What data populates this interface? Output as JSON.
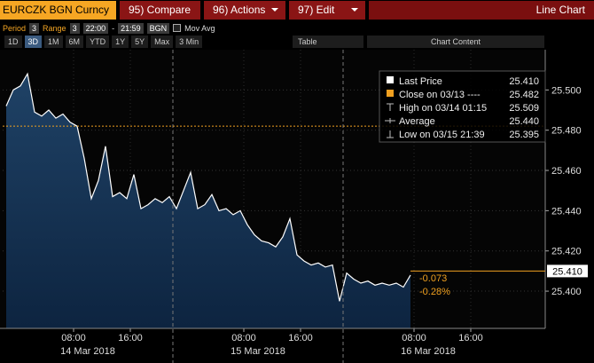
{
  "toolbar": {
    "security": "EURCZK BGN Curncy",
    "buttons": [
      "95) Compare",
      "96) Actions",
      "97) Edit"
    ],
    "view": "Line Chart"
  },
  "controls": {
    "period_label": "Period",
    "period": "3",
    "range_label": "Range",
    "range": "3",
    "start": "22:00",
    "dash": "-",
    "end": "21:59",
    "currency": "BGN",
    "mov_avg": "Mov Avg"
  },
  "periods": [
    "1D",
    "3D",
    "1M",
    "6M",
    "YTD",
    "1Y",
    "5Y",
    "Max"
  ],
  "interval": "3 Min",
  "table": "Table",
  "chart_content": "Chart Content",
  "chart_data": {
    "type": "line",
    "x": [
      -1.5,
      -0.5,
      0.5,
      1.5,
      2.5,
      3.5,
      4.5,
      5.5,
      6.5,
      7.5,
      8.5,
      9.5,
      10.5,
      11.5,
      12.5,
      13.5,
      14.5,
      15.5,
      16.5,
      17.5,
      18.5,
      19.5,
      20.5,
      21.5,
      22.5,
      23.5,
      24.5,
      25.5,
      26.5,
      27.5,
      28.5,
      29.5,
      30.5,
      31.5,
      32.5,
      33.5,
      34.5,
      35.5,
      36.5,
      37.5,
      38.5,
      39.5,
      40.5,
      41.5,
      42.5,
      43.5,
      44.5,
      45.5,
      46.5,
      47.5,
      48.5,
      49.5,
      50.5,
      51.5,
      52.5,
      53.5,
      54.5,
      55.5
    ],
    "series": [
      {
        "name": "Last Price",
        "color": "#ffffff",
        "area_color": "#1c3d60",
        "values": [
          25.492,
          25.5,
          25.502,
          25.508,
          25.489,
          25.487,
          25.49,
          25.486,
          25.488,
          25.484,
          25.482,
          25.466,
          25.446,
          25.455,
          25.472,
          25.447,
          25.449,
          25.446,
          25.458,
          25.441,
          25.443,
          25.446,
          25.444,
          25.447,
          25.441,
          25.45,
          25.459,
          25.441,
          25.443,
          25.448,
          25.44,
          25.441,
          25.438,
          25.44,
          25.433,
          25.428,
          25.425,
          25.424,
          25.422,
          25.427,
          25.436,
          25.418,
          25.415,
          25.413,
          25.414,
          25.412,
          25.413,
          25.395,
          25.409,
          25.406,
          25.404,
          25.405,
          25.403,
          25.404,
          25.403,
          25.404,
          25.402,
          25.408
        ]
      }
    ],
    "xlim": [
      -2,
      74.5
    ],
    "xticks": [
      {
        "value": 8,
        "label": "08:00"
      },
      {
        "value": 16,
        "label": "16:00"
      },
      {
        "value": 32,
        "label": "08:00"
      },
      {
        "value": 40,
        "label": "16:00"
      },
      {
        "value": 56,
        "label": "08:00"
      },
      {
        "value": 64,
        "label": "16:00"
      }
    ],
    "day_labels": [
      {
        "value": 10,
        "label": "14 Mar 2018"
      },
      {
        "value": 34,
        "label": "15 Mar 2018"
      },
      {
        "value": 58,
        "label": "16 Mar 2018"
      }
    ],
    "day_separators": [
      22,
      46
    ],
    "ylim": [
      25.3815,
      25.52
    ],
    "yticks": [
      {
        "value": 25.5,
        "label": "25.500"
      },
      {
        "value": 25.48,
        "label": "25.480"
      },
      {
        "value": 25.46,
        "label": "25.460"
      },
      {
        "value": 25.44,
        "label": "25.440"
      },
      {
        "value": 25.42,
        "label": "25.420"
      },
      {
        "value": 25.4,
        "label": "25.400"
      }
    ],
    "grid": true,
    "legend": {
      "items": [
        {
          "name": "Last Price",
          "value": 25.41,
          "value_label": "25.410",
          "marker": "square",
          "color": "#ffffff"
        },
        {
          "name": "Close on 03/13 ----",
          "value": 25.482,
          "marker": "square",
          "color": "#f0a020"
        },
        {
          "name": "High on 03/14 01:15",
          "value": 25.509,
          "marker": "high"
        },
        {
          "name": "Average",
          "value": 25.44,
          "value_label": "25.440",
          "marker": "avg"
        },
        {
          "name": "Low on 03/15 21:39",
          "value": 25.395,
          "marker": "low"
        }
      ]
    },
    "change": {
      "value": -0.073,
      "pct": -0.28,
      "pct_label": "-0.28%",
      "color": "#f0a020"
    }
  }
}
